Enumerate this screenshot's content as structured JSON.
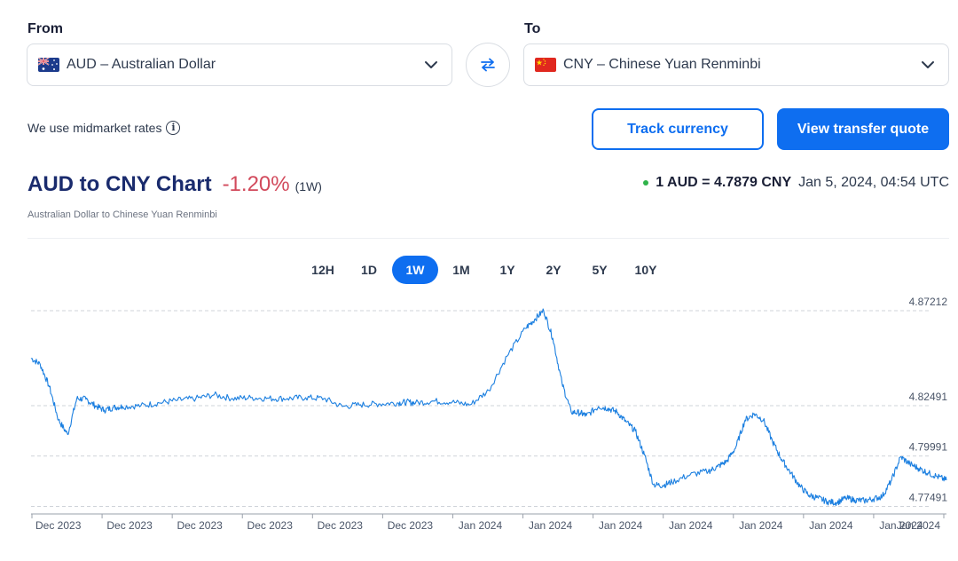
{
  "converter": {
    "from_label": "From",
    "to_label": "To",
    "from_value": "AUD – Australian Dollar",
    "to_value": "CNY – Chinese Yuan Renminbi",
    "from_flag": "australia-flag",
    "to_flag": "china-flag"
  },
  "note": "We use midmarket rates",
  "buttons": {
    "track": "Track currency",
    "quote": "View transfer quote"
  },
  "header": {
    "title": "AUD to CNY Chart",
    "change": "-1.20%",
    "period": "(1W)",
    "subtitle": "Australian Dollar to Chinese Yuan Renminbi",
    "rate": "1 AUD = 4.7879 CNY",
    "timestamp": "Jan 5, 2024, 04:54 UTC"
  },
  "ranges": [
    {
      "label": "12H",
      "active": false
    },
    {
      "label": "1D",
      "active": false
    },
    {
      "label": "1W",
      "active": true
    },
    {
      "label": "1M",
      "active": false
    },
    {
      "label": "1Y",
      "active": false
    },
    {
      "label": "2Y",
      "active": false
    },
    {
      "label": "5Y",
      "active": false
    },
    {
      "label": "10Y",
      "active": false
    }
  ],
  "colors": {
    "accent": "#0e6ef0",
    "negative": "#d24a5c",
    "live": "#2fb34a",
    "line": "#1b7fe0"
  },
  "chart_data": {
    "type": "line",
    "title": "AUD to CNY Chart",
    "ylim": [
      4.7729,
      4.8721
    ],
    "yticks": [
      4.87212,
      4.82491,
      4.79991,
      4.77491
    ],
    "ytick_labels": [
      "4.87212",
      "4.82491",
      "4.79991",
      "4.77491"
    ],
    "xticks": [
      "Dec 2023",
      "Dec 2023",
      "Dec 2023",
      "Dec 2023",
      "Dec 2023",
      "Dec 2023",
      "Jan 2024",
      "Jan 2024",
      "Jan 2024",
      "Jan 2024",
      "Jan 2024",
      "Jan 2024",
      "Jan 2024",
      "Jan 2024"
    ],
    "grid": "horizontal dashed",
    "series": [
      {
        "x": [
          0.0,
          0.01,
          0.02,
          0.03,
          0.04,
          0.05,
          0.06,
          0.07,
          0.08,
          0.09,
          0.1,
          0.12,
          0.14,
          0.16,
          0.18,
          0.2,
          0.22,
          0.24,
          0.26,
          0.28,
          0.3,
          0.32,
          0.34,
          0.36,
          0.38,
          0.4,
          0.41,
          0.42,
          0.44,
          0.46,
          0.48,
          0.5,
          0.52,
          0.54,
          0.55,
          0.56,
          0.57,
          0.58,
          0.59,
          0.6,
          0.6066,
          0.62,
          0.63,
          0.64,
          0.65,
          0.66,
          0.67,
          0.68,
          0.69,
          0.7,
          0.72,
          0.74,
          0.75,
          0.76,
          0.77,
          0.78,
          0.79,
          0.8,
          0.81,
          0.82,
          0.83,
          0.84,
          0.85,
          0.86,
          0.87,
          0.88,
          0.89,
          0.9,
          0.91,
          0.92,
          0.93,
          0.94,
          0.95,
          0.96,
          0.97,
          0.98,
          0.99,
          1.0
        ],
        "values": [
          4.8485,
          4.8455,
          4.8343,
          4.8178,
          4.8106,
          4.8285,
          4.8281,
          4.8249,
          4.8227,
          4.824,
          4.8245,
          4.8249,
          4.8263,
          4.8276,
          4.8285,
          4.8303,
          4.8285,
          4.8289,
          4.8285,
          4.8285,
          4.8289,
          4.8285,
          4.8245,
          4.8254,
          4.8258,
          4.8263,
          4.8267,
          4.8263,
          4.8272,
          4.8267,
          4.8254,
          4.8325,
          4.8495,
          4.8633,
          4.8677,
          4.8722,
          4.8584,
          4.8361,
          4.8218,
          4.8213,
          4.82,
          4.8245,
          4.8236,
          4.8218,
          4.8169,
          4.8124,
          4.8004,
          4.7857,
          4.7853,
          4.787,
          4.7906,
          4.7924,
          4.7946,
          4.7973,
          4.8044,
          4.8178,
          4.8209,
          4.8178,
          4.8071,
          4.7982,
          4.7915,
          4.7848,
          4.7804,
          4.779,
          4.7772,
          4.7768,
          4.779,
          4.7781,
          4.7777,
          4.7786,
          4.7799,
          4.7879,
          4.7995,
          4.796,
          4.7937,
          4.7915,
          4.7897,
          4.7879
        ]
      }
    ]
  }
}
